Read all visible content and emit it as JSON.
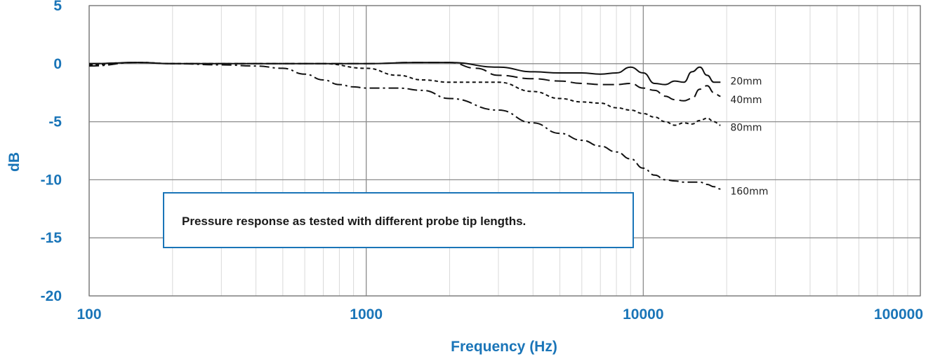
{
  "colors": {
    "accent": "#1a75b8",
    "curve": "#111111",
    "grid_minor": "#d9d9d9",
    "grid_major": "#8c8c8c"
  },
  "annotation": "Pressure response as tested with different probe tip lengths.",
  "chart_data": {
    "type": "line",
    "title": "",
    "xlabel": "Frequency (Hz)",
    "ylabel": "dB",
    "xscale": "log",
    "xlim": [
      100,
      100000
    ],
    "ylim": [
      -20,
      5
    ],
    "xticks": [
      "100",
      "1000",
      "10000",
      "100000"
    ],
    "yticks": [
      "5",
      "0",
      "-5",
      "-10",
      "-15",
      "-20"
    ],
    "grid": true,
    "legend": "inline labels at right end of each curve",
    "series": [
      {
        "name": "20mm",
        "style": "solid",
        "x": [
          100,
          150,
          200,
          300,
          500,
          700,
          1000,
          1500,
          2000,
          3000,
          4000,
          5000,
          6000,
          7000,
          8000,
          9000,
          10000,
          11000,
          12000,
          13000,
          14000,
          15000,
          16000,
          17000,
          18000,
          19000
        ],
        "y": [
          0,
          0.1,
          0,
          0,
          0,
          0,
          0,
          0.1,
          0.1,
          -0.3,
          -0.7,
          -0.8,
          -0.8,
          -0.9,
          -0.8,
          -0.3,
          -0.8,
          -1.7,
          -1.8,
          -1.5,
          -1.6,
          -0.7,
          -0.3,
          -1.0,
          -1.6,
          -1.6
        ]
      },
      {
        "name": "40mm",
        "style": "long-dash",
        "x": [
          100,
          150,
          200,
          300,
          500,
          700,
          1000,
          1500,
          2000,
          2500,
          3000,
          4000,
          5000,
          6000,
          7000,
          8000,
          9000,
          10000,
          11000,
          12000,
          13000,
          14000,
          15000,
          16000,
          17000,
          18000,
          19000
        ],
        "y": [
          0,
          0.1,
          0,
          0,
          0,
          0,
          0,
          0.1,
          0.1,
          -0.4,
          -1.0,
          -1.3,
          -1.5,
          -1.7,
          -1.8,
          -1.8,
          -1.7,
          -2.1,
          -2.3,
          -2.8,
          -3.1,
          -3.2,
          -3.0,
          -2.2,
          -1.9,
          -2.5,
          -2.8
        ]
      },
      {
        "name": "80mm",
        "style": "short-dash",
        "x": [
          100,
          150,
          200,
          300,
          500,
          700,
          1000,
          1300,
          1600,
          2000,
          2500,
          3000,
          4000,
          5000,
          6000,
          7000,
          8000,
          9000,
          10000,
          11000,
          12000,
          13000,
          14000,
          15000,
          16000,
          17000,
          18000,
          19000
        ],
        "y": [
          -0.1,
          0.1,
          0,
          0,
          0,
          0,
          -0.4,
          -1.0,
          -1.4,
          -1.6,
          -1.6,
          -1.6,
          -2.4,
          -3.0,
          -3.3,
          -3.4,
          -3.8,
          -4.0,
          -4.3,
          -4.6,
          -5.0,
          -5.3,
          -5.1,
          -5.2,
          -4.9,
          -4.7,
          -5.0,
          -5.3
        ]
      },
      {
        "name": "160mm",
        "style": "dash-dot",
        "x": [
          100,
          150,
          200,
          300,
          400,
          500,
          600,
          700,
          800,
          900,
          1000,
          1300,
          1600,
          2000,
          3000,
          4000,
          5000,
          6000,
          7000,
          8000,
          9000,
          10000,
          11000,
          12000,
          13000,
          14000,
          15000,
          16000,
          17000,
          18000,
          19000
        ],
        "y": [
          -0.2,
          0.1,
          0,
          -0.1,
          -0.2,
          -0.4,
          -0.9,
          -1.4,
          -1.8,
          -2.0,
          -2.1,
          -2.1,
          -2.3,
          -3.0,
          -4.0,
          -5.1,
          -6.0,
          -6.6,
          -7.1,
          -7.6,
          -8.2,
          -9.0,
          -9.6,
          -10.0,
          -10.1,
          -10.2,
          -10.2,
          -10.2,
          -10.4,
          -10.6,
          -10.8
        ]
      }
    ]
  }
}
